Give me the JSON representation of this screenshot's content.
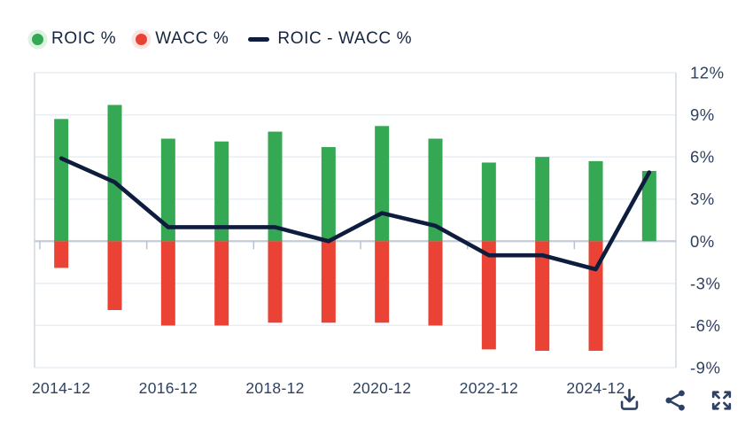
{
  "chart_data": {
    "type": "bar+line",
    "categories": [
      "2014-12",
      "2015-12",
      "2016-12",
      "2017-12",
      "2018-12",
      "2019-12",
      "2020-12",
      "2021-12",
      "2022-12",
      "2023-12",
      "2024-12",
      "2025-12"
    ],
    "x_tick_labels": [
      "2014-12",
      "2016-12",
      "2018-12",
      "2020-12",
      "2022-12",
      "2024-12"
    ],
    "y_tick_labels": [
      "12%",
      "9%",
      "6%",
      "3%",
      "0%",
      "-3%",
      "-6%",
      "-9%"
    ],
    "ylim": [
      -9,
      12
    ],
    "y_step": 3,
    "grid": true,
    "legend_position": "top-left",
    "series": [
      {
        "name": "ROIC %",
        "type": "bar",
        "color": "#34a853",
        "values": [
          8.7,
          9.7,
          7.3,
          7.1,
          7.8,
          6.7,
          8.2,
          7.3,
          5.6,
          6.0,
          5.7,
          5.0
        ]
      },
      {
        "name": "WACC %",
        "type": "bar",
        "color": "#ea4335",
        "values": [
          -1.9,
          -4.9,
          -6.0,
          -6.0,
          -5.8,
          -5.8,
          -5.8,
          -6.0,
          -7.7,
          -7.8,
          -7.8,
          0
        ]
      },
      {
        "name": "ROIC - WACC %",
        "type": "line",
        "color": "#0e1c3e",
        "values": [
          5.9,
          4.2,
          1.0,
          1.0,
          1.0,
          0.0,
          2.0,
          1.1,
          -1.0,
          -1.0,
          -2.0,
          4.9
        ]
      }
    ]
  },
  "theme": {
    "background": "#ffffff",
    "gridline_color": "#e8eef4",
    "zero_line_color": "#c3ccd8",
    "border_color": "#d2d9e2",
    "tick_color": "#b8c2cf",
    "axis_text_color": "#2e4160",
    "legend_text_color": "#15253f",
    "icon_color": "#2e4164"
  },
  "toolbar": {
    "icons": [
      "download-icon",
      "share-icon",
      "fullscreen-icon"
    ]
  }
}
